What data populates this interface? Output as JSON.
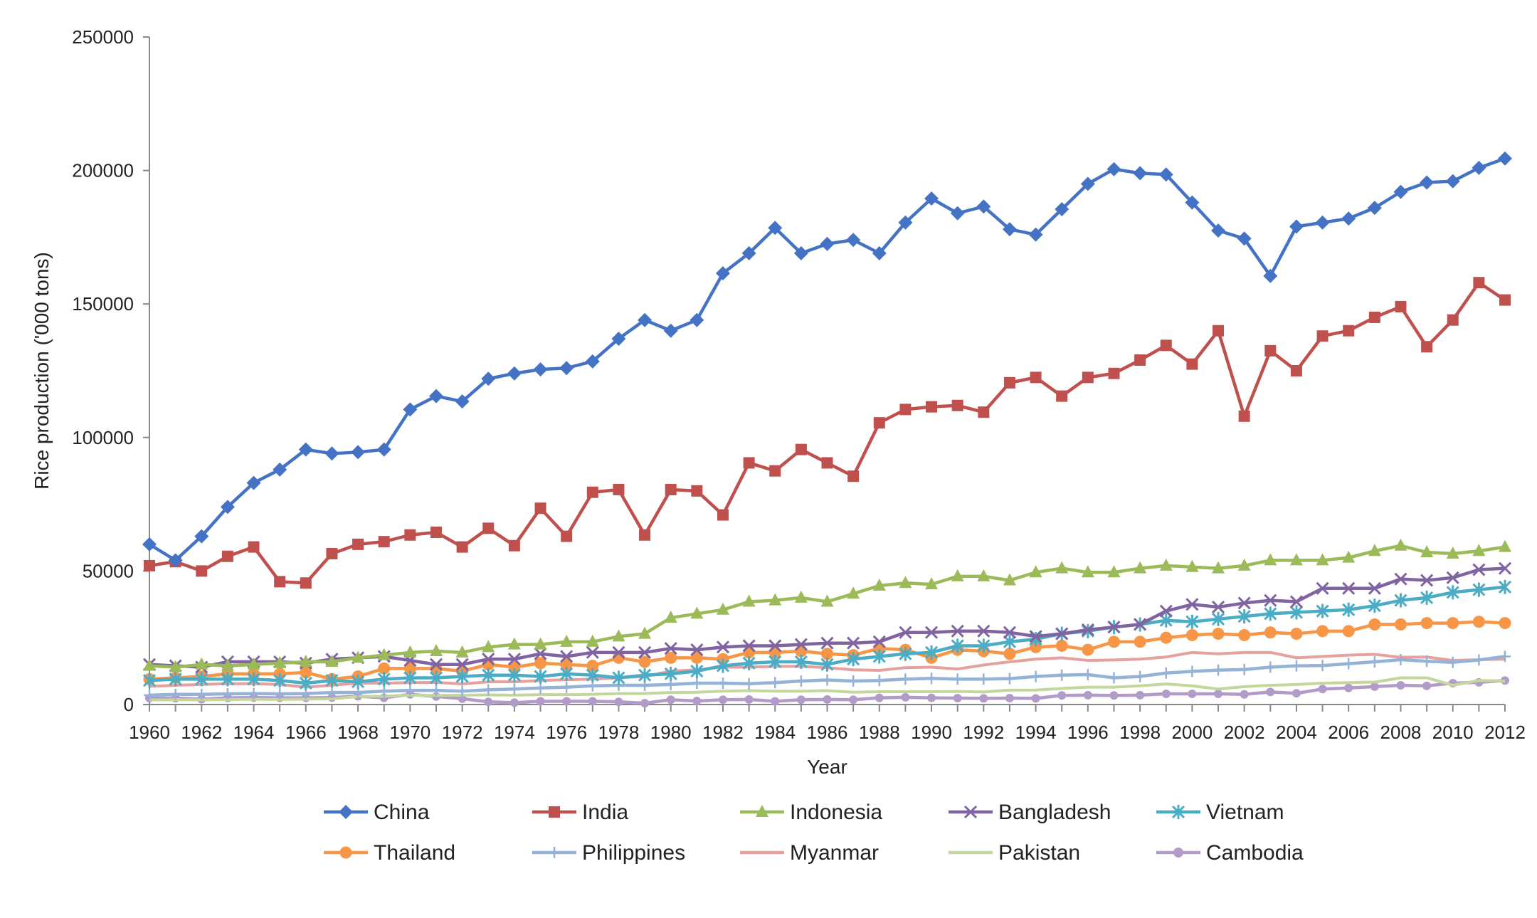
{
  "chart_data": {
    "type": "line",
    "xlabel": "Year",
    "ylabel": "Rice production ('000 tons)",
    "ylim": [
      0,
      250000
    ],
    "yticks": [
      "0",
      "50000",
      "100000",
      "150000",
      "200000",
      "250000"
    ],
    "x": [
      1960,
      1961,
      1962,
      1963,
      1964,
      1965,
      1966,
      1967,
      1968,
      1969,
      1970,
      1971,
      1972,
      1973,
      1974,
      1975,
      1976,
      1977,
      1978,
      1979,
      1980,
      1981,
      1982,
      1983,
      1984,
      1985,
      1986,
      1987,
      1988,
      1989,
      1990,
      1991,
      1992,
      1993,
      1994,
      1995,
      1996,
      1997,
      1998,
      1999,
      2000,
      2001,
      2002,
      2003,
      2004,
      2005,
      2006,
      2007,
      2008,
      2009,
      2010,
      2011,
      2012
    ],
    "xticks": [
      "1960",
      "1962",
      "1964",
      "1966",
      "1968",
      "1970",
      "1972",
      "1974",
      "1976",
      "1978",
      "1980",
      "1982",
      "1984",
      "1986",
      "1988",
      "1990",
      "1992",
      "1994",
      "1996",
      "1998",
      "2000",
      "2002",
      "2004",
      "2006",
      "2008",
      "2010",
      "2012"
    ],
    "grid": false,
    "legend": "bottom",
    "series": [
      {
        "name": "China",
        "color": "#4472C4",
        "marker": "diamond",
        "values": [
          60000,
          54000,
          63000,
          74000,
          83000,
          88000,
          95500,
          94000,
          94500,
          95500,
          110500,
          115500,
          113500,
          122000,
          124000,
          125500,
          126000,
          128500,
          137000,
          144000,
          140000,
          144000,
          161500,
          169000,
          178500,
          169000,
          172500,
          174000,
          169000,
          180500,
          189500,
          184000,
          186500,
          178000,
          176000,
          185500,
          195000,
          200500,
          199000,
          198500,
          188000,
          177500,
          174500,
          160500,
          179000,
          180500,
          182000,
          186000,
          192000,
          195500,
          196000,
          201000,
          204500
        ]
      },
      {
        "name": "India",
        "color": "#C0504D",
        "marker": "square",
        "values": [
          52000,
          53500,
          50000,
          55500,
          59000,
          46000,
          45500,
          56500,
          60000,
          61000,
          63500,
          64500,
          59000,
          66000,
          59500,
          73500,
          63000,
          79500,
          80500,
          63500,
          80500,
          80000,
          71000,
          90500,
          87500,
          95500,
          90500,
          85500,
          105500,
          110500,
          111500,
          112000,
          109500,
          120500,
          122500,
          115500,
          122500,
          124000,
          129000,
          134500,
          127500,
          140000,
          108000,
          132500,
          125000,
          138000,
          140000,
          145000,
          149000,
          134000,
          144000,
          158000,
          151500
        ]
      },
      {
        "name": "Indonesia",
        "color": "#9BBB59",
        "marker": "triangle",
        "values": [
          14500,
          14000,
          15000,
          14500,
          15000,
          15500,
          16000,
          16000,
          17500,
          18500,
          19500,
          20000,
          19500,
          21500,
          22500,
          22500,
          23500,
          23500,
          25500,
          26500,
          32500,
          34000,
          35500,
          38500,
          39000,
          40000,
          38500,
          41500,
          44500,
          45500,
          45000,
          48000,
          48000,
          46500,
          49500,
          51000,
          49500,
          49500,
          51000,
          52000,
          51500,
          51000,
          52000,
          54000,
          54000,
          54000,
          55000,
          57500,
          59500,
          57000,
          56500,
          57500,
          59000
        ]
      },
      {
        "name": "Bangladesh",
        "color": "#8064A2",
        "marker": "x",
        "values": [
          15000,
          14500,
          14000,
          16000,
          16000,
          16000,
          15500,
          17000,
          17500,
          18000,
          16500,
          15000,
          15000,
          17000,
          17000,
          19000,
          18000,
          19500,
          19500,
          19500,
          21000,
          20500,
          21500,
          22000,
          22000,
          22500,
          23000,
          23000,
          23500,
          27000,
          27000,
          27500,
          27500,
          27000,
          25500,
          26500,
          28000,
          29000,
          30000,
          35000,
          37500,
          36500,
          38000,
          39000,
          38500,
          43500,
          43500,
          43500,
          47000,
          46500,
          47500,
          50500,
          51000
        ]
      },
      {
        "name": "Vietnam",
        "color": "#4BACC6",
        "marker": "asterisk",
        "values": [
          9000,
          9500,
          9500,
          9500,
          9500,
          9000,
          8000,
          9000,
          8500,
          9500,
          10000,
          10000,
          10500,
          11000,
          11000,
          10500,
          11500,
          11000,
          10000,
          11000,
          11500,
          12500,
          14500,
          15500,
          16000,
          16000,
          15000,
          17000,
          18000,
          19000,
          19500,
          22000,
          22000,
          23500,
          24500,
          26500,
          27500,
          29000,
          30000,
          31500,
          31000,
          32000,
          33000,
          34000,
          34500,
          35000,
          35500,
          37000,
          39000,
          40000,
          42000,
          43000,
          44000
        ]
      },
      {
        "name": "Thailand",
        "color": "#F79646",
        "marker": "circle",
        "values": [
          9500,
          10000,
          10500,
          11500,
          11500,
          11500,
          12000,
          9500,
          10500,
          13500,
          13500,
          13500,
          12500,
          15000,
          14000,
          15500,
          15000,
          14500,
          17500,
          16000,
          17500,
          17500,
          17000,
          19500,
          19500,
          20000,
          19000,
          18500,
          21000,
          20500,
          17500,
          20500,
          20000,
          19000,
          21500,
          22000,
          20500,
          23500,
          23500,
          25000,
          26000,
          26500,
          26000,
          27000,
          26500,
          27500,
          27500,
          30000,
          30000,
          30500,
          30500,
          31000,
          30500
        ]
      },
      {
        "name": "Philippines",
        "color": "#95B3D7",
        "marker": "plus",
        "values": [
          3500,
          3800,
          3800,
          4000,
          4100,
          4000,
          4100,
          4500,
          4500,
          5000,
          5300,
          5300,
          5000,
          5500,
          5800,
          6200,
          6500,
          7000,
          7200,
          7200,
          7500,
          8000,
          8000,
          7800,
          8200,
          8800,
          9200,
          8800,
          9000,
          9500,
          9800,
          9500,
          9500,
          9700,
          10500,
          11000,
          11200,
          10000,
          10500,
          11800,
          12400,
          12900,
          13100,
          14000,
          14500,
          14600,
          15300,
          16000,
          16800,
          16200,
          15800,
          16700,
          18000
        ]
      },
      {
        "name": "Myanmar",
        "color": "#E6A09E",
        "marker": "none",
        "values": [
          6800,
          7200,
          7500,
          7800,
          7800,
          7500,
          6500,
          7200,
          8000,
          8000,
          8200,
          8300,
          7700,
          8500,
          8500,
          9000,
          9300,
          9500,
          10000,
          10500,
          12500,
          13000,
          14000,
          14000,
          14300,
          14300,
          13800,
          13000,
          12800,
          13800,
          14000,
          13300,
          14800,
          16000,
          17000,
          17500,
          16500,
          16700,
          17000,
          17800,
          19500,
          19000,
          19500,
          19500,
          17500,
          18000,
          18500,
          18800,
          17700,
          17800,
          16500,
          16800,
          17000
        ]
      },
      {
        "name": "Pakistan",
        "color": "#C3D69B",
        "marker": "none",
        "values": [
          1700,
          1800,
          1750,
          1850,
          1950,
          1900,
          2000,
          2100,
          3000,
          3100,
          3500,
          3400,
          3500,
          3600,
          3500,
          3700,
          3700,
          3800,
          4100,
          4100,
          4500,
          4600,
          5000,
          5200,
          5000,
          5000,
          5200,
          4600,
          4800,
          4800,
          4800,
          4900,
          4700,
          5400,
          5400,
          6000,
          6500,
          6500,
          7000,
          7700,
          7000,
          5800,
          6700,
          7200,
          7500,
          8000,
          8200,
          8400,
          10000,
          10000,
          7200,
          9000,
          8800
        ]
      },
      {
        "name": "Cambodia",
        "color": "#B29BC9",
        "marker": "circle",
        "values": [
          2400,
          2400,
          2000,
          2500,
          2600,
          2500,
          2500,
          2600,
          3100,
          2500,
          3800,
          3000,
          2200,
          1000,
          700,
          1200,
          1200,
          1200,
          1000,
          500,
          1800,
          1300,
          1800,
          1900,
          1200,
          1800,
          1900,
          1800,
          2500,
          2700,
          2500,
          2400,
          2300,
          2400,
          2300,
          3400,
          3500,
          3400,
          3500,
          4000,
          4000,
          4000,
          3800,
          4700,
          4200,
          5800,
          6200,
          6700,
          7200,
          7000,
          8000,
          8300,
          9000
        ]
      }
    ]
  }
}
